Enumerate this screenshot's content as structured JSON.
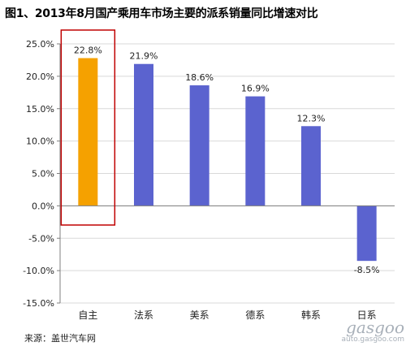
{
  "title": "图1、2013年8月国产乘用车市场主要的派系销量同比增速对比",
  "source": "来源：盖世汽车网",
  "watermark": {
    "brand": "gasgoo",
    "site": "auto.gasgoo.com"
  },
  "colors": {
    "highlight_bar": "#F5A100",
    "bar": "#5B63CF",
    "highlight_box": "#C00000",
    "grid": "#d9d9d9",
    "axis": "#7f7f7f"
  },
  "chart_data": {
    "type": "bar",
    "title": "",
    "xlabel": "",
    "ylabel": "",
    "categories": [
      "自主",
      "法系",
      "美系",
      "德系",
      "韩系",
      "日系"
    ],
    "values": [
      22.8,
      21.9,
      18.6,
      16.9,
      12.3,
      -8.5
    ],
    "value_labels": [
      "22.8%",
      "21.9%",
      "18.6%",
      "16.9%",
      "12.3%",
      "-8.5%"
    ],
    "highlight_index": 0,
    "ylim": [
      -15,
      25
    ],
    "yticks": [
      25,
      20,
      15,
      10,
      5,
      0,
      -5,
      -10,
      -15
    ],
    "ytick_labels": [
      "25.0%",
      "20.0%",
      "15.0%",
      "10.0%",
      "5.0%",
      "0.0%",
      "-5.0%",
      "-10.0%",
      "-15.0%"
    ],
    "grid": true,
    "legend": "none"
  }
}
